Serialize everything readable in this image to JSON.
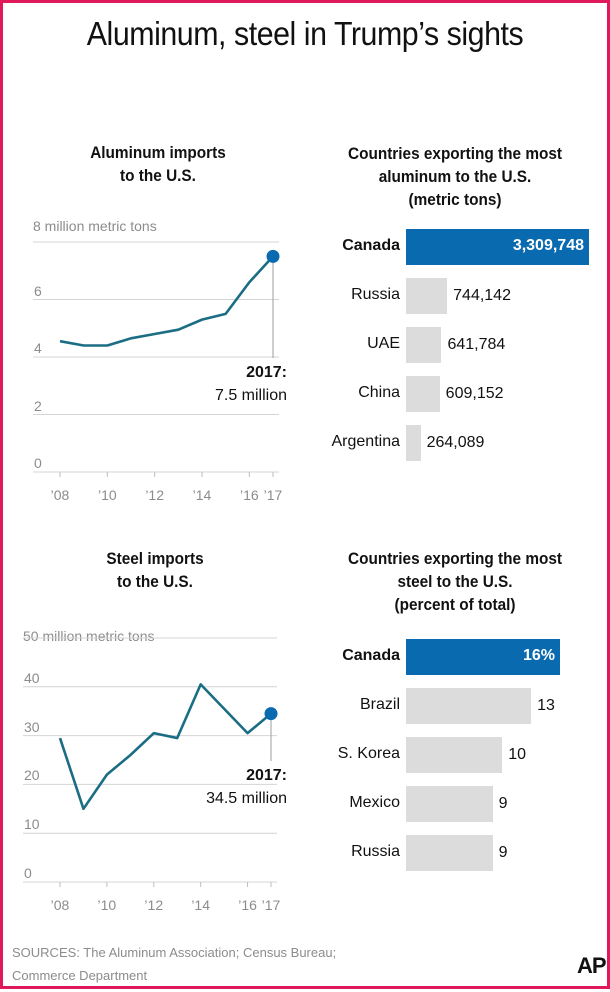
{
  "title": "Aluminum, steel in Trump’s sights",
  "charts": {
    "al_line": {
      "title_l1": "Aluminum imports",
      "title_l2": "to the U.S.",
      "unit": "8 million metric tons",
      "annotation_year": "2017:",
      "annotation_value": "7.5 million"
    },
    "al_bar": {
      "title_l1": "Countries exporting the most",
      "title_l2": "aluminum to the U.S.",
      "title_l3": "(metric tons)"
    },
    "st_line": {
      "title_l1": "Steel imports",
      "title_l2": "to the U.S.",
      "unit": "50 million metric tons",
      "annotation_year": "2017:",
      "annotation_value": "34.5 million"
    },
    "st_bar": {
      "title_l1": "Countries exporting the most",
      "title_l2": "steel to the U.S.",
      "title_l3": "(percent of total)"
    }
  },
  "chart_data": [
    {
      "type": "line",
      "title": "Aluminum imports to the U.S.",
      "ylabel": "8 million metric tons",
      "x": [
        2008,
        2009,
        2010,
        2011,
        2012,
        2013,
        2014,
        2015,
        2016,
        2017
      ],
      "values": [
        4.55,
        4.4,
        4.4,
        4.65,
        4.8,
        4.95,
        5.3,
        5.5,
        6.6,
        7.5
      ],
      "ylim": [
        0,
        8
      ],
      "yticks": [
        "0",
        "2",
        "4",
        "6"
      ],
      "xticks": [
        "’08",
        "’10",
        "’12",
        "’14",
        "’16",
        "’17"
      ],
      "xtick_years": [
        2008,
        2010,
        2012,
        2014,
        2016,
        2017
      ],
      "color": "#1b6d84",
      "highlight_color": "#0a6ab0"
    },
    {
      "type": "bar",
      "orientation": "horizontal",
      "title": "Countries exporting the most aluminum to the U.S. (metric tons)",
      "categories": [
        "Canada",
        "Russia",
        "UAE",
        "China",
        "Argentina"
      ],
      "values": [
        3309748,
        744142,
        641784,
        609152,
        264089
      ],
      "value_labels": [
        "3,309,748",
        "744,142",
        "641,784",
        "609,152",
        "264,089"
      ],
      "highlight_color": "#0a6ab0",
      "bar_color": "#dcdcdc"
    },
    {
      "type": "line",
      "title": "Steel imports to the U.S.",
      "ylabel": "50 million metric tons",
      "x": [
        2008,
        2009,
        2010,
        2011,
        2012,
        2013,
        2014,
        2015,
        2016,
        2017
      ],
      "values": [
        29.5,
        15,
        22,
        26,
        30.5,
        29.5,
        40.5,
        35.5,
        30.5,
        34.5
      ],
      "ylim": [
        0,
        50
      ],
      "yticks": [
        "0",
        "10",
        "20",
        "30",
        "40"
      ],
      "xticks": [
        "’08",
        "’10",
        "’12",
        "’14",
        "’16",
        "’17"
      ],
      "xtick_years": [
        2008,
        2010,
        2012,
        2014,
        2016,
        2017
      ],
      "color": "#1b6d84",
      "highlight_color": "#0a6ab0"
    },
    {
      "type": "bar",
      "orientation": "horizontal",
      "title": "Countries exporting the most steel to the U.S. (percent of total)",
      "categories": [
        "Canada",
        "Brazil",
        "S. Korea",
        "Mexico",
        "Russia"
      ],
      "values": [
        16,
        13,
        10,
        9,
        9
      ],
      "value_labels": [
        "16%",
        "13",
        "10",
        "9",
        "9"
      ],
      "highlight_color": "#0a6ab0",
      "bar_color": "#dcdcdc"
    }
  ],
  "footer": {
    "sources_l1": "SOURCES: The Aluminum Association; Census Bureau;",
    "sources_l2": "Commerce Department",
    "logo_text": "AP"
  }
}
